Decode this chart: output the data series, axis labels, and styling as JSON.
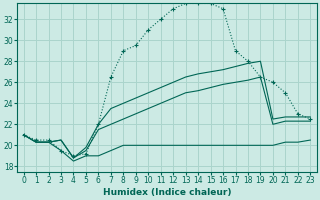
{
  "bg_color": "#cceae4",
  "grid_color": "#aad4cc",
  "line_color": "#006655",
  "xlabel": "Humidex (Indice chaleur)",
  "xlim": [
    -0.5,
    23.5
  ],
  "ylim": [
    17.5,
    33.5
  ],
  "yticks": [
    18,
    20,
    22,
    24,
    26,
    28,
    30,
    32
  ],
  "xticks": [
    0,
    1,
    2,
    3,
    4,
    5,
    6,
    7,
    8,
    9,
    10,
    11,
    12,
    13,
    14,
    15,
    16,
    17,
    18,
    19,
    20,
    21,
    22,
    23
  ],
  "series1_x": [
    0,
    1,
    2,
    3,
    4,
    5,
    6,
    7,
    8,
    9,
    10,
    11,
    12,
    13,
    14,
    15,
    16,
    17,
    18,
    19,
    20,
    21,
    22,
    23
  ],
  "series1_y": [
    21.0,
    20.5,
    20.5,
    19.5,
    19.0,
    19.2,
    22.0,
    26.5,
    29.0,
    29.5,
    31.0,
    32.0,
    33.0,
    33.5,
    33.5,
    33.5,
    33.0,
    29.0,
    28.0,
    26.5,
    26.0,
    25.0,
    23.0,
    22.5
  ],
  "series2_x": [
    0,
    1,
    2,
    3,
    4,
    5,
    6,
    7,
    8,
    9,
    10,
    11,
    12,
    13,
    14,
    15,
    16,
    17,
    18,
    19,
    20,
    21,
    22,
    23
  ],
  "series2_y": [
    21.0,
    20.3,
    20.3,
    19.5,
    18.5,
    19.0,
    19.0,
    19.5,
    20.0,
    20.0,
    20.0,
    20.0,
    20.0,
    20.0,
    20.0,
    20.0,
    20.0,
    20.0,
    20.0,
    20.0,
    20.0,
    20.3,
    20.3,
    20.5
  ],
  "series3_x": [
    0,
    1,
    2,
    3,
    4,
    5,
    6,
    7,
    8,
    9,
    10,
    11,
    12,
    13,
    14,
    15,
    16,
    17,
    18,
    19,
    20,
    21,
    22,
    23
  ],
  "series3_y": [
    21.0,
    20.3,
    20.3,
    20.5,
    18.8,
    19.5,
    21.5,
    22.0,
    22.5,
    23.0,
    23.5,
    24.0,
    24.5,
    25.0,
    25.2,
    25.5,
    25.8,
    26.0,
    26.2,
    26.5,
    22.0,
    22.3,
    22.3,
    22.3
  ],
  "series4_x": [
    0,
    1,
    2,
    3,
    4,
    5,
    6,
    7,
    8,
    9,
    10,
    11,
    12,
    13,
    14,
    15,
    16,
    17,
    18,
    19,
    20,
    21,
    22,
    23
  ],
  "series4_y": [
    21.0,
    20.3,
    20.3,
    20.5,
    18.8,
    19.8,
    22.0,
    23.5,
    24.0,
    24.5,
    25.0,
    25.5,
    26.0,
    26.5,
    26.8,
    27.0,
    27.2,
    27.5,
    27.8,
    28.0,
    22.5,
    22.7,
    22.7,
    22.7
  ]
}
